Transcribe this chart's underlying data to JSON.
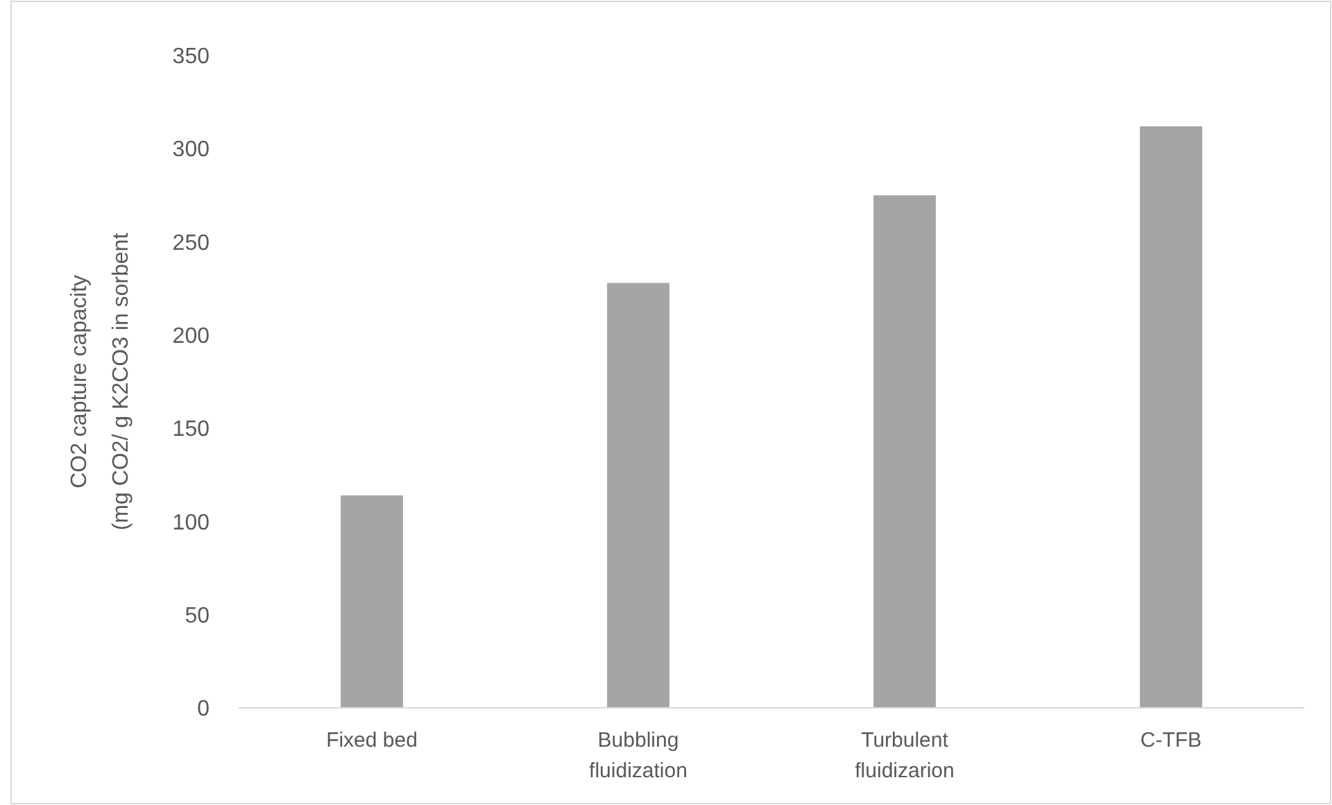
{
  "chart_data": {
    "type": "bar",
    "ylabel": "CO2 capture capacity\n(mg CO2/ g K2CO3 in sorbent",
    "categories": [
      "Fixed bed",
      "Bubbling fluidization",
      "Turbulent fluidizarion",
      "C-TFB"
    ],
    "values": [
      114,
      228,
      275,
      312
    ],
    "color": "#a5a5a5",
    "ylim": [
      0,
      350
    ],
    "yticks": [
      0,
      50,
      100,
      150,
      200,
      250,
      300,
      350
    ],
    "grid": false
  }
}
